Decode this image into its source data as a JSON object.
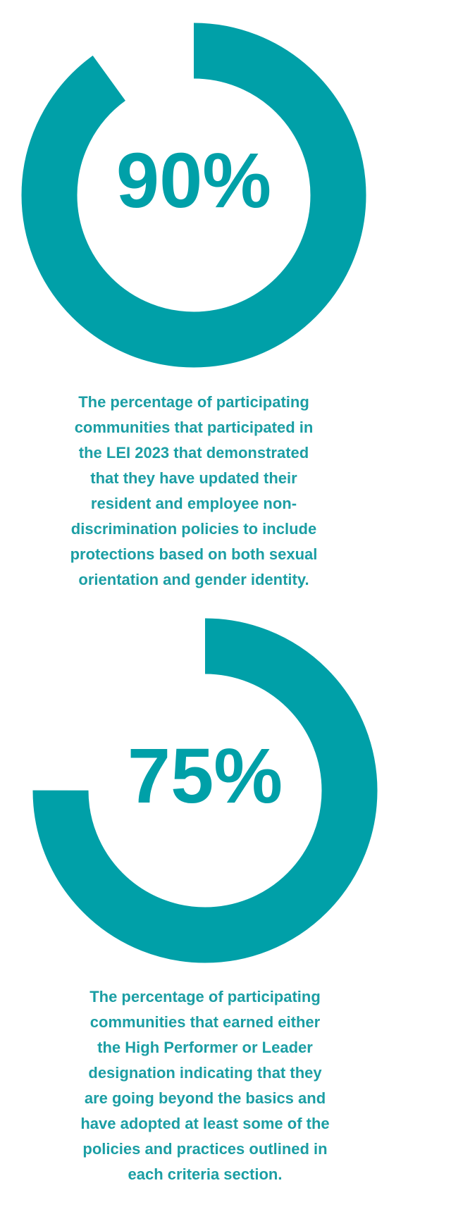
{
  "chart_data": [
    {
      "type": "donut",
      "values": [
        90
      ],
      "value_labels": [
        "90%"
      ],
      "color": "#00a0a8",
      "caption": [
        "The percentage of participating",
        "communities that participated in",
        "the LEI 2023 that demonstrated",
        "that they have updated their",
        "resident and employee non-",
        "discrimination policies to include",
        "protections based on both sexual",
        "orientation and gender identity."
      ]
    },
    {
      "type": "donut",
      "values": [
        75
      ],
      "value_labels": [
        "75%"
      ],
      "color": "#00a0a8",
      "caption": [
        "The percentage of participating",
        "communities that earned either",
        "the High Performer or Leader",
        "designation indicating that they",
        "are going beyond the basics and",
        "have adopted at least some of the",
        "policies and practices outlined in",
        "each criteria section."
      ]
    }
  ]
}
